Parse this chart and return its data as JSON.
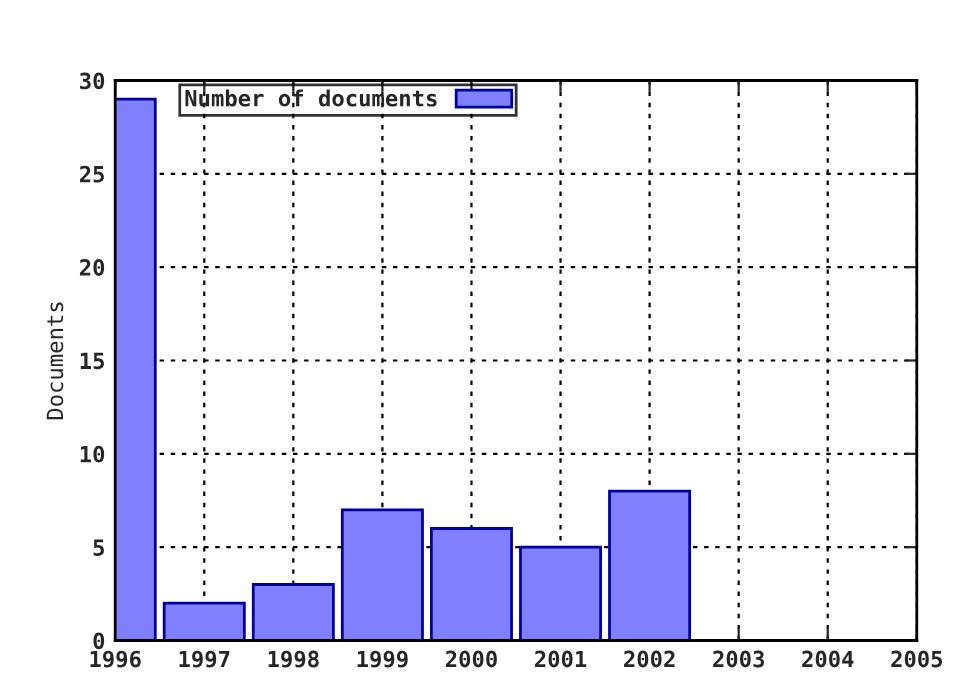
{
  "chart_data": {
    "type": "bar",
    "ylabel": "Documents",
    "x": [
      1996,
      1997,
      1998,
      1999,
      2000,
      2001,
      2002
    ],
    "series": [
      {
        "name": "Number of documents",
        "color": "#8080ff",
        "values": [
          29,
          2,
          3,
          7,
          6,
          5,
          8
        ]
      }
    ],
    "xlim": [
      1996,
      2005
    ],
    "xticks": [
      1996,
      1997,
      1998,
      1999,
      2000,
      2001,
      2002,
      2003,
      2004,
      2005
    ],
    "ylim": [
      0,
      30
    ],
    "yticks": [
      0,
      5,
      10,
      15,
      20,
      25,
      30
    ],
    "grid": true,
    "legend": "top left"
  }
}
